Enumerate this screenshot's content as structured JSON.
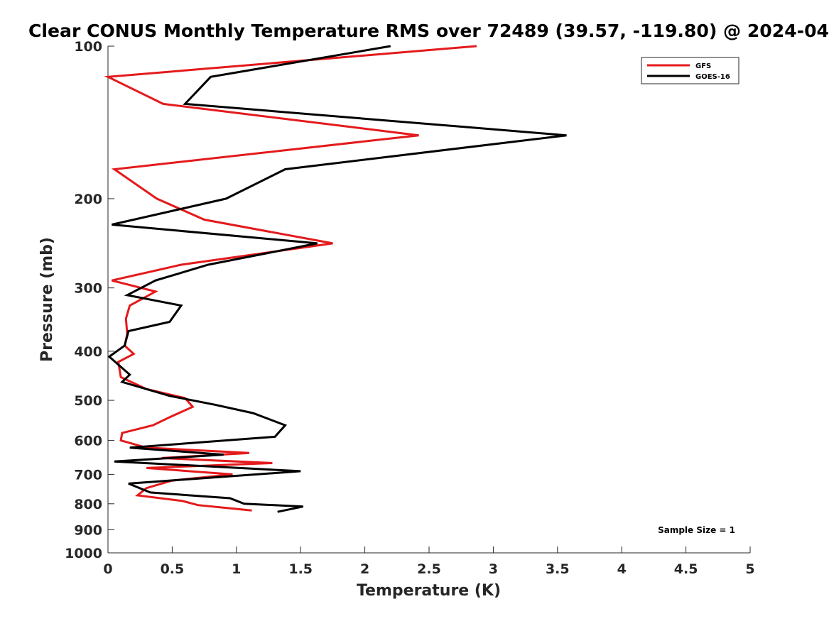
{
  "chart_data": {
    "type": "line",
    "title": "Clear CONUS Monthly Temperature RMS over 72489 (39.57, -119.80) @ 2024-04",
    "xlabel": "Temperature (K)",
    "ylabel": "Pressure (mb)",
    "xlim": [
      0,
      5
    ],
    "ylim": [
      100,
      1000
    ],
    "y_scale": "log",
    "y_reversed": true,
    "x_ticks": [
      "0",
      "0.5",
      "1",
      "1.5",
      "2",
      "2.5",
      "3",
      "3.5",
      "4",
      "4.5",
      "5"
    ],
    "y_ticks": [
      "100",
      "200",
      "300",
      "400",
      "500",
      "600",
      "700",
      "800",
      "900",
      "1000"
    ],
    "legend_position": "top-right",
    "annotation": "Sample Size = 1",
    "series": [
      {
        "name": "GFS",
        "color": "#e41a1c",
        "x": [
          2.87,
          0.0,
          0.43,
          2.42,
          0.05,
          0.38,
          0.75,
          1.75,
          0.57,
          0.03,
          0.37,
          0.17,
          0.14,
          0.15,
          0.13,
          0.2,
          0.08,
          0.1,
          0.3,
          0.6,
          0.66,
          0.48,
          0.35,
          0.11,
          0.1,
          0.3,
          1.1,
          0.42,
          1.28,
          0.3,
          0.97,
          0.5,
          0.3,
          0.23,
          0.58,
          0.7,
          1.12
        ],
        "y": [
          100,
          115,
          130,
          150,
          175,
          200,
          220,
          245,
          270,
          290,
          305,
          325,
          345,
          370,
          390,
          405,
          420,
          450,
          475,
          495,
          515,
          540,
          560,
          580,
          600,
          620,
          635,
          650,
          665,
          680,
          700,
          720,
          745,
          770,
          790,
          805,
          825
        ]
      },
      {
        "name": "GOES-16",
        "color": "#000000",
        "x": [
          2.2,
          0.8,
          0.6,
          3.57,
          1.38,
          0.92,
          0.03,
          1.63,
          0.78,
          0.37,
          0.15,
          0.57,
          0.48,
          0.16,
          0.13,
          0.01,
          0.08,
          0.17,
          0.11,
          0.48,
          0.83,
          1.13,
          1.38,
          1.3,
          0.17,
          0.9,
          0.05,
          1.5,
          0.16,
          0.33,
          0.95,
          1.06,
          1.52,
          1.32
        ],
        "y": [
          100,
          115,
          130,
          150,
          175,
          200,
          225,
          245,
          270,
          290,
          310,
          325,
          350,
          365,
          390,
          410,
          425,
          445,
          460,
          490,
          510,
          530,
          560,
          590,
          620,
          640,
          660,
          690,
          730,
          760,
          780,
          800,
          810,
          830
        ]
      }
    ]
  }
}
